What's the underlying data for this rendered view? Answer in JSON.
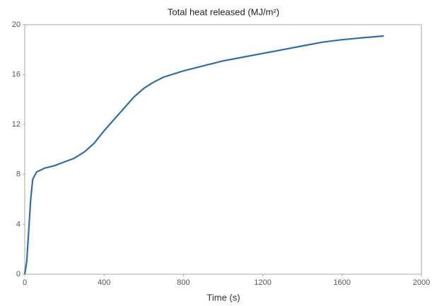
{
  "chart_data": {
    "type": "line",
    "title": "Total heat released (MJ/m²)",
    "x_label": "Time (s)",
    "x": [
      0,
      10,
      20,
      30,
      40,
      60,
      100,
      150,
      200,
      250,
      300,
      350,
      400,
      450,
      500,
      550,
      600,
      650,
      700,
      800,
      900,
      1000,
      1100,
      1200,
      1300,
      1400,
      1500,
      1600,
      1700,
      1810
    ],
    "series": [
      {
        "name": "Total heat released",
        "color": "#2f6eaa",
        "values": [
          0,
          1,
          3.5,
          6,
          7.6,
          8.2,
          8.5,
          8.7,
          9,
          9.3,
          9.8,
          10.5,
          11.5,
          12.4,
          13.3,
          14.2,
          14.9,
          15.4,
          15.8,
          16.3,
          16.7,
          17.1,
          17.4,
          17.7,
          18,
          18.3,
          18.6,
          18.8,
          18.95,
          19.1
        ]
      }
    ],
    "xlim": [
      0,
      2000
    ],
    "xticks": [
      0,
      400,
      800,
      1200,
      1600,
      2000
    ],
    "ylim": [
      0,
      20
    ],
    "yticks": [
      0,
      4,
      8,
      12,
      16,
      20
    ],
    "grid": false
  }
}
